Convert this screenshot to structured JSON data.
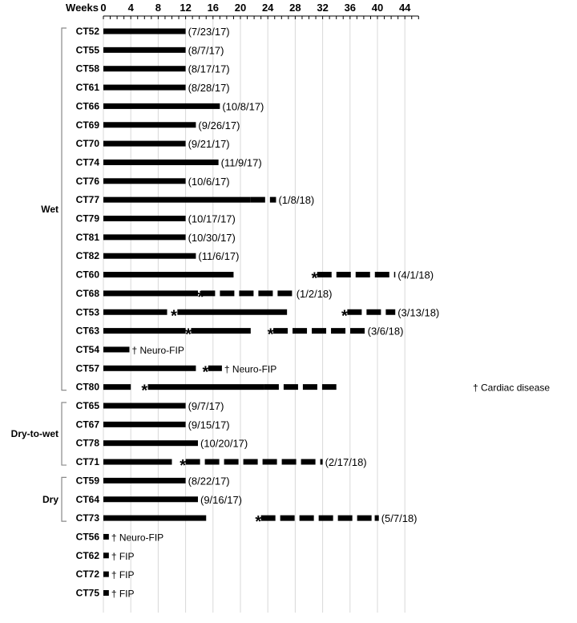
{
  "chart_data": {
    "type": "bar",
    "xlabel": "Weeks",
    "xlim": [
      0,
      46
    ],
    "xticks": [
      0,
      4,
      8,
      12,
      16,
      20,
      24,
      28,
      32,
      36,
      40,
      44
    ],
    "grid": "vertical",
    "legend": "none",
    "colors": {
      "bar": "#000000",
      "grid": "#d8d8d8",
      "bracket": "#8a8a8a"
    },
    "groups": [
      {
        "name": "Wet",
        "from": "CT52",
        "to": "CT80"
      },
      {
        "name": "Dry-to-wet",
        "from": "CT65",
        "to": "CT71"
      },
      {
        "name": "Dry",
        "from": "CT59",
        "to": "CT73"
      }
    ],
    "rows": [
      {
        "id": "CT52",
        "segments": [
          {
            "start": 0,
            "end": 12,
            "style": "solid"
          }
        ],
        "end_label": "(7/23/17)"
      },
      {
        "id": "CT55",
        "segments": [
          {
            "start": 0,
            "end": 12,
            "style": "solid"
          }
        ],
        "end_label": "(8/7/17)"
      },
      {
        "id": "CT58",
        "segments": [
          {
            "start": 0,
            "end": 12,
            "style": "solid"
          }
        ],
        "end_label": "(8/17/17)"
      },
      {
        "id": "CT61",
        "segments": [
          {
            "start": 0,
            "end": 12,
            "style": "solid"
          }
        ],
        "end_label": "(8/28/17)"
      },
      {
        "id": "CT66",
        "segments": [
          {
            "start": 0,
            "end": 17,
            "style": "solid"
          }
        ],
        "end_label": "(10/8/17)"
      },
      {
        "id": "CT69",
        "segments": [
          {
            "start": 0,
            "end": 13.5,
            "style": "solid"
          }
        ],
        "end_label": "(9/26/17)"
      },
      {
        "id": "CT70",
        "segments": [
          {
            "start": 0,
            "end": 12,
            "style": "solid"
          }
        ],
        "end_label": "(9/21/17)"
      },
      {
        "id": "CT74",
        "segments": [
          {
            "start": 0,
            "end": 16.8,
            "style": "solid"
          }
        ],
        "end_label": "(11/9/17)"
      },
      {
        "id": "CT76",
        "segments": [
          {
            "start": 0,
            "end": 12,
            "style": "solid"
          }
        ],
        "end_label": "(10/6/17)"
      },
      {
        "id": "CT77",
        "segments": [
          {
            "start": 0,
            "end": 21.5,
            "style": "solid"
          },
          {
            "start": 21.5,
            "end": 25.2,
            "style": "dashed"
          }
        ],
        "end_label": "(1/8/18)"
      },
      {
        "id": "CT79",
        "segments": [
          {
            "start": 0,
            "end": 12,
            "style": "solid"
          }
        ],
        "end_label": "(10/17/17)"
      },
      {
        "id": "CT81",
        "segments": [
          {
            "start": 0,
            "end": 12,
            "style": "solid"
          }
        ],
        "end_label": "(10/30/17)"
      },
      {
        "id": "CT82",
        "segments": [
          {
            "start": 0,
            "end": 13.5,
            "style": "solid"
          }
        ],
        "end_label": "(11/6/17)"
      },
      {
        "id": "CT60",
        "segments": [
          {
            "start": 0,
            "end": 19,
            "style": "solid"
          },
          {
            "start": 31.2,
            "end": 42.6,
            "style": "dashed"
          }
        ],
        "markers": [
          30.8
        ],
        "end_label": "(4/1/18)"
      },
      {
        "id": "CT68",
        "segments": [
          {
            "start": 0,
            "end": 13.8,
            "style": "solid"
          },
          {
            "start": 14.2,
            "end": 27.8,
            "style": "dashed"
          }
        ],
        "markers": [
          14.2
        ],
        "end_label": "(1/2/18)"
      },
      {
        "id": "CT53",
        "segments": [
          {
            "start": 0,
            "end": 9.3,
            "style": "solid"
          },
          {
            "start": 10.8,
            "end": 26.8,
            "style": "solid"
          },
          {
            "start": 35.6,
            "end": 42.6,
            "style": "dashed"
          }
        ],
        "markers": [
          10.3,
          35.2
        ],
        "end_label": "(3/13/18)"
      },
      {
        "id": "CT63",
        "segments": [
          {
            "start": 0,
            "end": 12,
            "style": "solid"
          },
          {
            "start": 12.8,
            "end": 21.5,
            "style": "solid"
          },
          {
            "start": 24.8,
            "end": 38.2,
            "style": "dashed"
          }
        ],
        "markers": [
          12.4,
          24.4
        ],
        "end_label": "(3/6/18)"
      },
      {
        "id": "CT54",
        "segments": [
          {
            "start": 0,
            "end": 3.8,
            "style": "solid"
          }
        ],
        "end_label": "† Neuro-FIP"
      },
      {
        "id": "CT57",
        "segments": [
          {
            "start": 0,
            "end": 13.5,
            "style": "solid"
          },
          {
            "start": 15.3,
            "end": 17.3,
            "style": "solid"
          }
        ],
        "markers": [
          14.9
        ],
        "end_label": "† Neuro-FIP"
      },
      {
        "id": "CT80",
        "segments": [
          {
            "start": 0,
            "end": 4,
            "style": "solid"
          },
          {
            "start": 6.5,
            "end": 23.5,
            "style": "solid"
          },
          {
            "start": 23.5,
            "end": 34,
            "style": "dashed"
          }
        ],
        "markers": [
          6
        ],
        "end_label": "† Cardiac disease"
      },
      {
        "id": "CT65",
        "segments": [
          {
            "start": 0,
            "end": 12,
            "style": "solid"
          }
        ],
        "end_label": "(9/7/17)"
      },
      {
        "id": "CT67",
        "segments": [
          {
            "start": 0,
            "end": 12,
            "style": "solid"
          }
        ],
        "end_label": "(9/15/17)"
      },
      {
        "id": "CT78",
        "segments": [
          {
            "start": 0,
            "end": 13.8,
            "style": "solid"
          }
        ],
        "end_label": "(10/20/17)"
      },
      {
        "id": "CT71",
        "segments": [
          {
            "start": 0,
            "end": 10,
            "style": "solid"
          },
          {
            "start": 12,
            "end": 32,
            "style": "dashed"
          }
        ],
        "markers": [
          11.6
        ],
        "end_label": "(2/17/18)"
      },
      {
        "id": "CT59",
        "segments": [
          {
            "start": 0,
            "end": 12,
            "style": "solid"
          }
        ],
        "end_label": "(8/22/17)"
      },
      {
        "id": "CT64",
        "segments": [
          {
            "start": 0,
            "end": 13.8,
            "style": "solid"
          }
        ],
        "end_label": "(9/16/17)"
      },
      {
        "id": "CT73",
        "segments": [
          {
            "start": 0,
            "end": 15,
            "style": "solid"
          },
          {
            "start": 23,
            "end": 39.2,
            "style": "dashed"
          },
          {
            "start": 39.6,
            "end": 40.2,
            "style": "solid"
          }
        ],
        "markers": [
          22.6
        ],
        "end_label": "(5/7/18)"
      },
      {
        "id": "CT56",
        "segments": [
          {
            "start": 0,
            "end": 0.8,
            "style": "solid"
          }
        ],
        "end_label": "† Neuro-FIP"
      },
      {
        "id": "CT62",
        "segments": [
          {
            "start": 0,
            "end": 0.8,
            "style": "solid"
          }
        ],
        "end_label": "† FIP"
      },
      {
        "id": "CT72",
        "segments": [
          {
            "start": 0,
            "end": 0.8,
            "style": "solid"
          }
        ],
        "end_label": "† FIP"
      },
      {
        "id": "CT75",
        "segments": [
          {
            "start": 0,
            "end": 0.8,
            "style": "solid"
          }
        ],
        "end_label": "† FIP"
      }
    ]
  }
}
